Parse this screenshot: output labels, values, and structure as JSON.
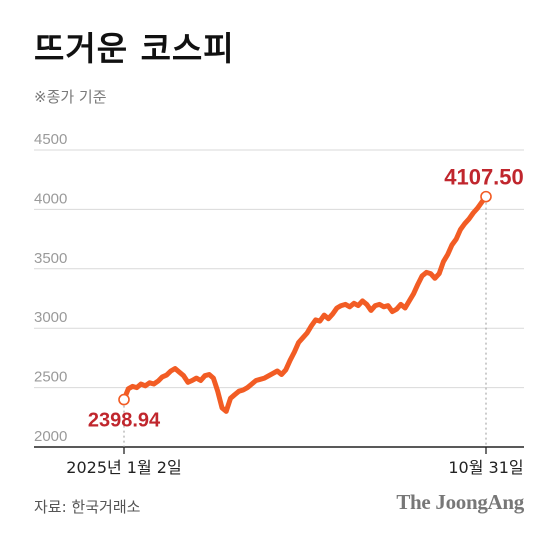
{
  "title": "뜨거운 코스피",
  "subtitle": "※종가 기준",
  "source": "자료: 한국거래소",
  "logo": "The JoongAng",
  "colors": {
    "line": "#f25c24",
    "highlight": "#c0262d",
    "grid": "#d9d9d9",
    "tick": "#9a9a9a"
  },
  "chart_data": {
    "type": "line",
    "title": "뜨거운 코스피",
    "subtitle": "※종가 기준",
    "x_labels": [
      "2025년 1월 2일",
      "10월 31일"
    ],
    "yticks": [
      2000,
      2500,
      3000,
      3500,
      4000,
      4500
    ],
    "ylim": [
      2000,
      4500
    ],
    "grid": true,
    "start": {
      "label": "2398.94",
      "value": 2398.94
    },
    "end": {
      "label": "4107.50",
      "value": 4107.5
    },
    "series": [
      {
        "values": [
          2398.94,
          2490,
          2510,
          2500,
          2530,
          2515,
          2540,
          2530,
          2555,
          2590,
          2605,
          2640,
          2660,
          2630,
          2600,
          2545,
          2560,
          2580,
          2560,
          2600,
          2610,
          2580,
          2470,
          2330,
          2300,
          2410,
          2440,
          2470,
          2480,
          2500,
          2530,
          2560,
          2570,
          2580,
          2600,
          2620,
          2640,
          2610,
          2650,
          2730,
          2800,
          2880,
          2920,
          2960,
          3020,
          3070,
          3060,
          3110,
          3080,
          3120,
          3170,
          3190,
          3200,
          3180,
          3210,
          3190,
          3230,
          3200,
          3150,
          3190,
          3200,
          3180,
          3190,
          3140,
          3160,
          3200,
          3170,
          3230,
          3290,
          3370,
          3440,
          3470,
          3460,
          3420,
          3460,
          3560,
          3620,
          3700,
          3750,
          3830,
          3880,
          3920,
          3970,
          4010,
          4060,
          4107.5
        ]
      }
    ]
  }
}
